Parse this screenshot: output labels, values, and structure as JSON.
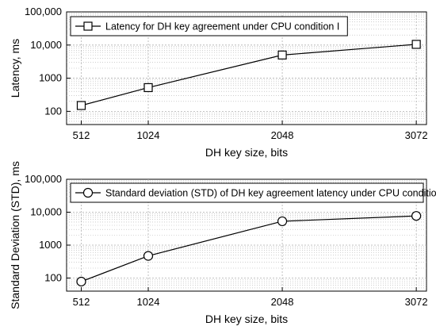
{
  "chart_data": [
    {
      "type": "line",
      "x": [
        512,
        1024,
        2048,
        3072
      ],
      "series": [
        {
          "name": "Latency for DH key agreement under CPU condition I",
          "values": [
            150,
            520,
            5000,
            10500
          ],
          "marker": "square"
        }
      ],
      "xlabel": "DH key size, bits",
      "ylabel": "Latency, ms",
      "xticks": [
        "512",
        "1024",
        "2048",
        "3072"
      ],
      "yticks": [
        "100",
        "1000",
        "10,000",
        "100,000"
      ],
      "xlim": [
        400,
        3150
      ],
      "ylim": [
        40,
        100000
      ],
      "yscale": "log",
      "grid": true,
      "legend_position": "top-left",
      "colors": {
        "line": "#000000",
        "grid": "#b0b0b0"
      }
    },
    {
      "type": "line",
      "x": [
        512,
        1024,
        2048,
        3072
      ],
      "series": [
        {
          "name": "Standard deviation (STD) of DH key agreement latency under CPU condition I",
          "values": [
            78,
            470,
            5300,
            7700
          ],
          "marker": "circle"
        }
      ],
      "xlabel": "DH key size, bits",
      "ylabel": "Standard Deviation (STD), ms",
      "xticks": [
        "512",
        "1024",
        "2048",
        "3072"
      ],
      "yticks": [
        "100",
        "1000",
        "10,000",
        "100,000"
      ],
      "xlim": [
        400,
        3150
      ],
      "ylim": [
        40,
        100000
      ],
      "yscale": "log",
      "grid": true,
      "legend_position": "top-left",
      "colors": {
        "line": "#000000",
        "grid": "#b0b0b0"
      }
    }
  ]
}
